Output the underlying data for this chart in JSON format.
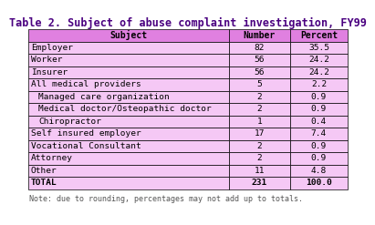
{
  "title": "Table 2. Subject of abuse complaint investigation, FY99",
  "columns": [
    "Subject",
    "Number",
    "Percent"
  ],
  "rows": [
    [
      "Employer",
      "82",
      "35.5"
    ],
    [
      "Worker",
      "56",
      "24.2"
    ],
    [
      "Insurer",
      "56",
      "24.2"
    ],
    [
      "All medical providers",
      "5",
      "2.2"
    ],
    [
      "  Managed care organization",
      "2",
      "0.9"
    ],
    [
      "  Medical doctor/Osteopathic doctor",
      "2",
      "0.9"
    ],
    [
      "  Chiropractor",
      "1",
      "0.4"
    ],
    [
      "Self insured employer",
      "17",
      "7.4"
    ],
    [
      "Vocational Consultant",
      "2",
      "0.9"
    ],
    [
      "Attorney",
      "2",
      "0.9"
    ],
    [
      "Other",
      "11",
      "4.8"
    ],
    [
      "TOTAL",
      "231",
      "100.0"
    ]
  ],
  "note": "Note: due to rounding, percentages may not add up to totals.",
  "header_bg": "#e080e0",
  "row_bg": "#f5c8f5",
  "title_color": "#000000",
  "border_color": "#000000",
  "title_fontsize": 8.5,
  "header_fontsize": 7.0,
  "row_fontsize": 6.8,
  "note_fontsize": 6.0,
  "note_color": "#555555"
}
